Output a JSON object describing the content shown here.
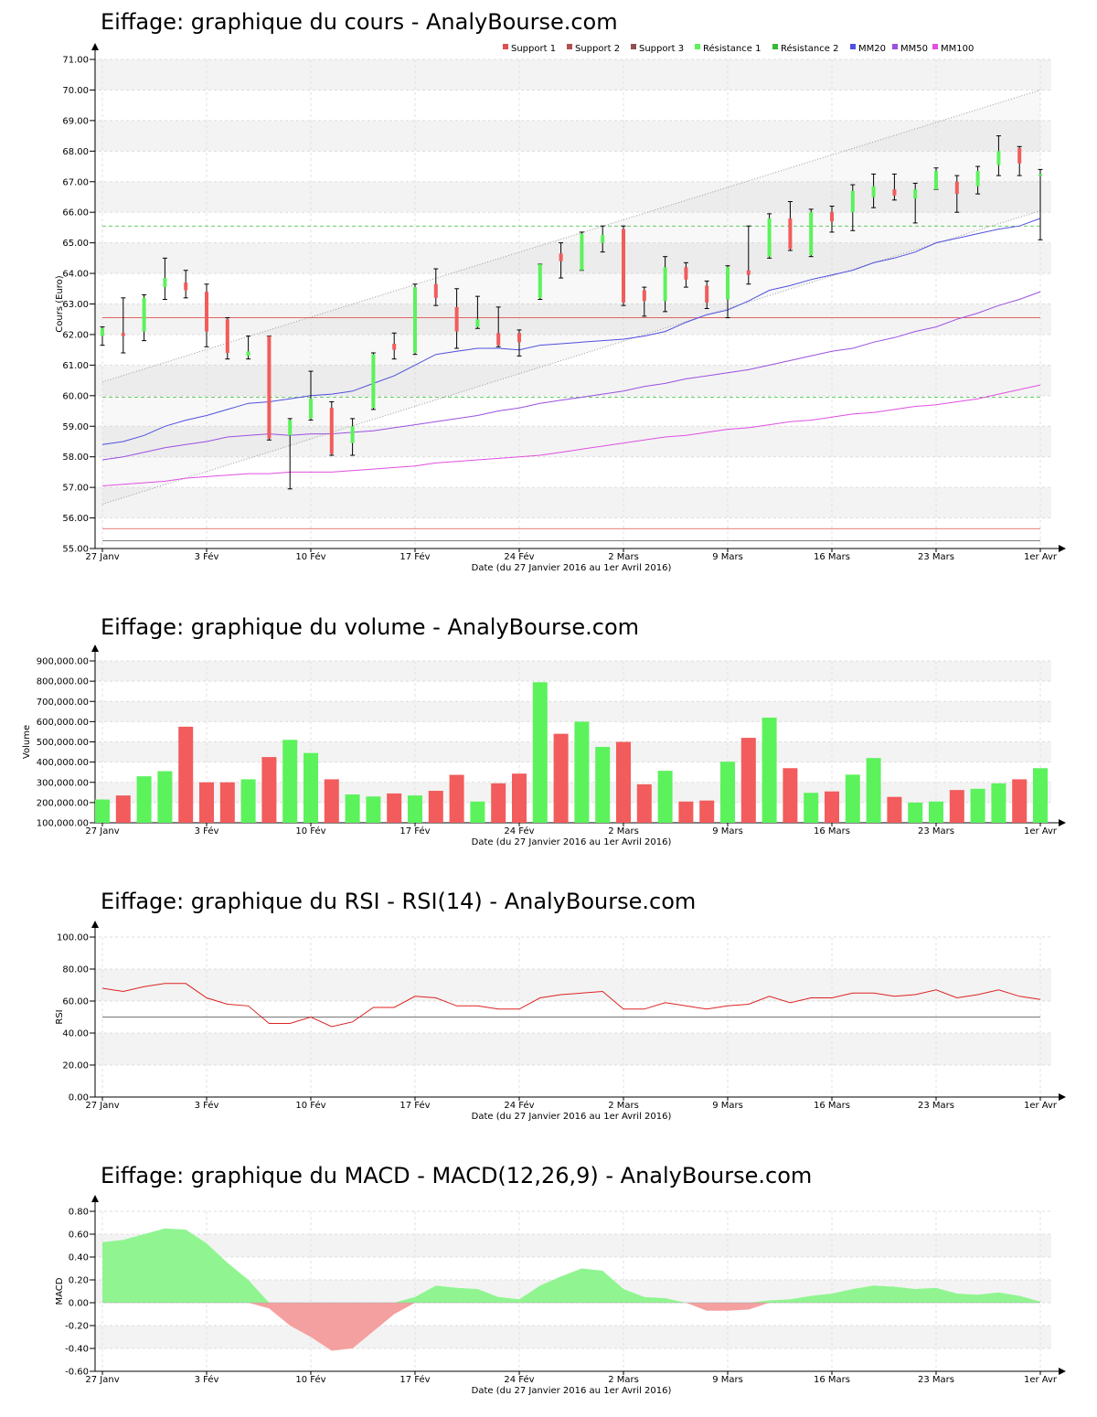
{
  "titles": {
    "price": "Eiffage: graphique du cours - AnalyBourse.com",
    "volume": "Eiffage: graphique du volume - AnalyBourse.com",
    "rsi": "Eiffage: graphique du RSI - RSI(14) - AnalyBourse.com",
    "macd": "Eiffage: graphique du MACD - MACD(12,26,9) - AnalyBourse.com"
  },
  "colors": {
    "up": "#5cf25c",
    "down": "#f25c5c",
    "support": "#e05050",
    "resistance": "#33bb33",
    "mm20": "#5050e0",
    "mm50": "#9b50e0",
    "mm100": "#e050e0",
    "rsi": "#dd2222",
    "band": "#f3f3f3"
  },
  "chart_data": [
    {
      "id": "price",
      "type": "candlestick",
      "ylabel": "Cours (Euro)",
      "xlabel": "Date (du 27 Janvier 2016 au 1er Avril 2016)",
      "ylim": [
        55,
        71
      ],
      "yticks": [
        "55.00",
        "56.00",
        "57.00",
        "58.00",
        "59.00",
        "60.00",
        "61.00",
        "62.00",
        "63.00",
        "64.00",
        "65.00",
        "66.00",
        "67.00",
        "68.00",
        "69.00",
        "70.00",
        "71.00"
      ],
      "xticks": [
        {
          "i": 0,
          "label": "27 Janv"
        },
        {
          "i": 5,
          "label": "3 Fév"
        },
        {
          "i": 10,
          "label": "10 Fév"
        },
        {
          "i": 15,
          "label": "17 Fév"
        },
        {
          "i": 20,
          "label": "24 Fév"
        },
        {
          "i": 25,
          "label": "2 Mars"
        },
        {
          "i": 30,
          "label": "9 Mars"
        },
        {
          "i": 35,
          "label": "16 Mars"
        },
        {
          "i": 40,
          "label": "23 Mars"
        },
        {
          "i": 45,
          "label": "1er Avr"
        }
      ],
      "legend": [
        "Support 1",
        "Support 2",
        "Support 3",
        "Résistance 1",
        "Résistance 2",
        "MM20",
        "MM50",
        "MM100"
      ],
      "legend_position": "top-right",
      "candles": [
        {
          "o": 61.95,
          "h": 62.25,
          "l": 61.65,
          "c": 62.2
        },
        {
          "o": 62.05,
          "h": 63.2,
          "l": 61.4,
          "c": 61.95
        },
        {
          "o": 62.1,
          "h": 63.3,
          "l": 61.8,
          "c": 63.2
        },
        {
          "o": 63.55,
          "h": 64.5,
          "l": 63.15,
          "c": 63.85
        },
        {
          "o": 63.7,
          "h": 64.1,
          "l": 63.2,
          "c": 63.45
        },
        {
          "o": 63.4,
          "h": 63.65,
          "l": 61.6,
          "c": 62.1
        },
        {
          "o": 62.5,
          "h": 62.55,
          "l": 61.2,
          "c": 61.4
        },
        {
          "o": 61.3,
          "h": 61.95,
          "l": 61.2,
          "c": 61.45
        },
        {
          "o": 61.95,
          "h": 61.95,
          "l": 58.55,
          "c": 58.6
        },
        {
          "o": 58.7,
          "h": 59.25,
          "l": 56.95,
          "c": 59.2
        },
        {
          "o": 59.25,
          "h": 60.8,
          "l": 59.2,
          "c": 59.9
        },
        {
          "o": 59.6,
          "h": 59.8,
          "l": 58.05,
          "c": 58.1
        },
        {
          "o": 58.45,
          "h": 59.25,
          "l": 58.05,
          "c": 59.0
        },
        {
          "o": 59.6,
          "h": 61.4,
          "l": 59.55,
          "c": 61.35
        },
        {
          "o": 61.7,
          "h": 62.05,
          "l": 61.2,
          "c": 61.5
        },
        {
          "o": 61.4,
          "h": 63.65,
          "l": 61.35,
          "c": 63.55
        },
        {
          "o": 63.65,
          "h": 64.15,
          "l": 62.95,
          "c": 63.2
        },
        {
          "o": 62.9,
          "h": 63.5,
          "l": 61.55,
          "c": 62.1
        },
        {
          "o": 62.25,
          "h": 63.25,
          "l": 62.2,
          "c": 62.5
        },
        {
          "o": 62.05,
          "h": 62.9,
          "l": 61.6,
          "c": 61.65
        },
        {
          "o": 62.05,
          "h": 62.15,
          "l": 61.3,
          "c": 61.75
        },
        {
          "o": 63.2,
          "h": 64.3,
          "l": 63.15,
          "c": 64.3
        },
        {
          "o": 64.65,
          "h": 65.0,
          "l": 63.85,
          "c": 64.4
        },
        {
          "o": 64.1,
          "h": 65.35,
          "l": 64.1,
          "c": 65.3
        },
        {
          "o": 65.0,
          "h": 65.55,
          "l": 64.7,
          "c": 65.25
        },
        {
          "o": 65.45,
          "h": 65.55,
          "l": 62.95,
          "c": 63.05
        },
        {
          "o": 63.45,
          "h": 63.55,
          "l": 62.6,
          "c": 63.1
        },
        {
          "o": 63.1,
          "h": 64.55,
          "l": 62.75,
          "c": 64.2
        },
        {
          "o": 64.2,
          "h": 64.35,
          "l": 63.55,
          "c": 63.8
        },
        {
          "o": 63.6,
          "h": 63.75,
          "l": 62.85,
          "c": 63.05
        },
        {
          "o": 63.15,
          "h": 64.25,
          "l": 62.55,
          "c": 64.2
        },
        {
          "o": 64.1,
          "h": 65.55,
          "l": 63.65,
          "c": 63.95
        },
        {
          "o": 64.55,
          "h": 65.95,
          "l": 64.5,
          "c": 65.8
        },
        {
          "o": 65.8,
          "h": 66.35,
          "l": 64.75,
          "c": 64.8
        },
        {
          "o": 64.6,
          "h": 66.1,
          "l": 64.55,
          "c": 66.0
        },
        {
          "o": 66.0,
          "h": 66.2,
          "l": 65.35,
          "c": 65.7
        },
        {
          "o": 66.0,
          "h": 66.9,
          "l": 65.4,
          "c": 66.7
        },
        {
          "o": 66.5,
          "h": 67.25,
          "l": 66.15,
          "c": 66.85
        },
        {
          "o": 66.75,
          "h": 67.25,
          "l": 66.4,
          "c": 66.55
        },
        {
          "o": 66.45,
          "h": 66.95,
          "l": 65.65,
          "c": 66.75
        },
        {
          "o": 66.75,
          "h": 67.45,
          "l": 66.75,
          "c": 67.35
        },
        {
          "o": 67.0,
          "h": 67.2,
          "l": 66.0,
          "c": 66.6
        },
        {
          "o": 66.85,
          "h": 67.5,
          "l": 66.6,
          "c": 67.35
        },
        {
          "o": 67.55,
          "h": 68.5,
          "l": 67.2,
          "c": 68.0
        },
        {
          "o": 68.1,
          "h": 68.15,
          "l": 67.2,
          "c": 67.6
        },
        {
          "o": 67.2,
          "h": 67.4,
          "l": 65.1,
          "c": 67.25
        }
      ],
      "support_lines": [
        62.55,
        55.65,
        55.25
      ],
      "resistance_lines": [
        65.55,
        59.95
      ],
      "channel_upper": [
        [
          0,
          60.45
        ],
        [
          45,
          70.0
        ]
      ],
      "channel_lower": [
        [
          0,
          56.45
        ],
        [
          45,
          66.05
        ]
      ],
      "mm20": [
        58.4,
        58.5,
        58.7,
        59.0,
        59.2,
        59.35,
        59.55,
        59.75,
        59.8,
        59.9,
        60.0,
        60.05,
        60.15,
        60.4,
        60.65,
        61.0,
        61.35,
        61.45,
        61.55,
        61.55,
        61.5,
        61.65,
        61.7,
        61.75,
        61.8,
        61.85,
        61.95,
        62.1,
        62.4,
        62.65,
        62.8,
        63.1,
        63.45,
        63.6,
        63.8,
        63.95,
        64.1,
        64.35,
        64.5,
        64.7,
        65.0,
        65.15,
        65.3,
        65.45,
        65.55,
        65.8
      ],
      "mm50": [
        57.9,
        58.0,
        58.15,
        58.3,
        58.4,
        58.5,
        58.65,
        58.7,
        58.75,
        58.7,
        58.75,
        58.75,
        58.8,
        58.85,
        58.95,
        59.05,
        59.15,
        59.25,
        59.35,
        59.5,
        59.6,
        59.75,
        59.85,
        59.95,
        60.05,
        60.15,
        60.3,
        60.4,
        60.55,
        60.65,
        60.75,
        60.85,
        61.0,
        61.15,
        61.3,
        61.45,
        61.55,
        61.75,
        61.9,
        62.1,
        62.25,
        62.5,
        62.7,
        62.95,
        63.15,
        63.4
      ],
      "mm100": [
        57.05,
        57.1,
        57.15,
        57.2,
        57.3,
        57.35,
        57.4,
        57.45,
        57.45,
        57.5,
        57.5,
        57.5,
        57.55,
        57.6,
        57.65,
        57.7,
        57.8,
        57.85,
        57.9,
        57.95,
        58.0,
        58.05,
        58.15,
        58.25,
        58.35,
        58.45,
        58.55,
        58.65,
        58.7,
        58.8,
        58.9,
        58.95,
        59.05,
        59.15,
        59.2,
        59.3,
        59.4,
        59.45,
        59.55,
        59.65,
        59.7,
        59.8,
        59.9,
        60.05,
        60.2,
        60.35
      ]
    },
    {
      "id": "volume",
      "type": "bar",
      "ylabel": "Volume",
      "xlabel": "Date (du 27 Janvier 2016 au 1er Avril 2016)",
      "ylim": [
        100000,
        900000
      ],
      "yticks": [
        "100,000.00",
        "200,000.00",
        "300,000.00",
        "400,000.00",
        "500,000.00",
        "600,000.00",
        "700,000.00",
        "800,000.00",
        "900,000.00"
      ],
      "xticks": [
        {
          "i": 0,
          "label": "27 Janv"
        },
        {
          "i": 5,
          "label": "3 Fév"
        },
        {
          "i": 10,
          "label": "10 Fév"
        },
        {
          "i": 15,
          "label": "17 Fév"
        },
        {
          "i": 20,
          "label": "24 Fév"
        },
        {
          "i": 25,
          "label": "2 Mars"
        },
        {
          "i": 30,
          "label": "9 Mars"
        },
        {
          "i": 35,
          "label": "16 Mars"
        },
        {
          "i": 40,
          "label": "23 Mars"
        },
        {
          "i": 45,
          "label": "1er Avr"
        }
      ],
      "values": [
        215000,
        235000,
        330000,
        355000,
        575000,
        300000,
        300000,
        315000,
        425000,
        510000,
        445000,
        315000,
        240000,
        230000,
        245000,
        235000,
        258000,
        337000,
        205000,
        295000,
        343000,
        795000,
        540000,
        600000,
        475000,
        500000,
        290000,
        357000,
        205000,
        210000,
        402000,
        520000,
        620000,
        370000,
        248000,
        255000,
        338000,
        420000,
        228000,
        200000,
        205000,
        262000,
        268000,
        295000,
        315000,
        370000
      ]
    },
    {
      "id": "rsi",
      "type": "line",
      "ylabel": "RSI",
      "xlabel": "Date (du 27 Janvier 2016 au 1er Avril 2016)",
      "ylim": [
        0,
        100
      ],
      "yticks": [
        "0.00",
        "20.00",
        "40.00",
        "60.00",
        "80.00",
        "100.00"
      ],
      "xticks": [
        {
          "i": 0,
          "label": "27 Janv"
        },
        {
          "i": 5,
          "label": "3 Fév"
        },
        {
          "i": 10,
          "label": "10 Fév"
        },
        {
          "i": 15,
          "label": "17 Fév"
        },
        {
          "i": 20,
          "label": "24 Fév"
        },
        {
          "i": 25,
          "label": "2 Mars"
        },
        {
          "i": 30,
          "label": "9 Mars"
        },
        {
          "i": 35,
          "label": "16 Mars"
        },
        {
          "i": 40,
          "label": "23 Mars"
        },
        {
          "i": 45,
          "label": "1er Avr"
        }
      ],
      "reference_line": 50,
      "values": [
        68,
        66,
        69,
        71,
        71,
        62,
        58,
        57,
        46,
        46,
        50,
        44,
        47,
        56,
        56,
        63,
        62,
        57,
        57,
        55,
        55,
        62,
        64,
        65,
        66,
        55,
        55,
        59,
        57,
        55,
        57,
        58,
        63,
        59,
        62,
        62,
        65,
        65,
        63,
        64,
        67,
        62,
        64,
        67,
        63,
        61
      ]
    },
    {
      "id": "macd",
      "type": "area",
      "ylabel": "MACD",
      "xlabel": "Date (du 27 Janvier 2016 au 1er Avril 2016)",
      "ylim": [
        -0.6,
        0.8
      ],
      "yticks": [
        "-0.60",
        "-0.40",
        "-0.20",
        "0.00",
        "0.20",
        "0.40",
        "0.60",
        "0.80"
      ],
      "xticks": [
        {
          "i": 0,
          "label": "27 Janv"
        },
        {
          "i": 5,
          "label": "3 Fév"
        },
        {
          "i": 10,
          "label": "10 Fév"
        },
        {
          "i": 15,
          "label": "17 Fév"
        },
        {
          "i": 20,
          "label": "24 Fév"
        },
        {
          "i": 25,
          "label": "2 Mars"
        },
        {
          "i": 30,
          "label": "9 Mars"
        },
        {
          "i": 35,
          "label": "16 Mars"
        },
        {
          "i": 40,
          "label": "23 Mars"
        },
        {
          "i": 45,
          "label": "1er Avr"
        }
      ],
      "values": [
        0.53,
        0.55,
        0.6,
        0.65,
        0.64,
        0.52,
        0.35,
        0.2,
        -0.05,
        -0.2,
        -0.3,
        -0.42,
        -0.4,
        -0.25,
        -0.1,
        0.05,
        0.15,
        0.13,
        0.12,
        0.05,
        0.03,
        0.15,
        0.23,
        0.3,
        0.28,
        0.12,
        0.05,
        0.04,
        0.0,
        -0.07,
        -0.07,
        -0.06,
        0.02,
        0.03,
        0.06,
        0.08,
        0.12,
        0.15,
        0.14,
        0.12,
        0.13,
        0.08,
        0.07,
        0.09,
        0.06,
        0.01
      ]
    }
  ]
}
